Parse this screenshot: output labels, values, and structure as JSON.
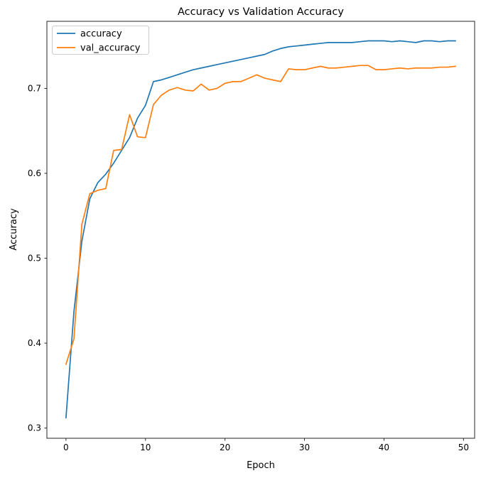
{
  "chart_data": {
    "type": "line",
    "title": "Accuracy vs Validation Accuracy",
    "xlabel": "Epoch",
    "ylabel": "Accuracy",
    "xlim": [
      -2.4,
      51.4
    ],
    "ylim": [
      0.288,
      0.779
    ],
    "x_ticks": [
      0,
      10,
      20,
      30,
      40,
      50
    ],
    "y_ticks": [
      0.3,
      0.4,
      0.5,
      0.6,
      0.7
    ],
    "grid": false,
    "legend_position": "upper-left",
    "x": [
      0,
      1,
      2,
      3,
      4,
      5,
      6,
      7,
      8,
      9,
      10,
      11,
      12,
      13,
      14,
      15,
      16,
      17,
      18,
      19,
      20,
      21,
      22,
      23,
      24,
      25,
      26,
      27,
      28,
      29,
      30,
      31,
      32,
      33,
      34,
      35,
      36,
      37,
      38,
      39,
      40,
      41,
      42,
      43,
      44,
      45,
      46,
      47,
      48,
      49
    ],
    "series": [
      {
        "name": "accuracy",
        "color": "#1f77b4",
        "values": [
          0.312,
          0.437,
          0.52,
          0.57,
          0.589,
          0.599,
          0.612,
          0.627,
          0.642,
          0.665,
          0.68,
          0.708,
          0.71,
          0.713,
          0.716,
          0.719,
          0.722,
          0.724,
          0.726,
          0.728,
          0.73,
          0.732,
          0.734,
          0.736,
          0.738,
          0.74,
          0.744,
          0.747,
          0.749,
          0.75,
          0.751,
          0.752,
          0.753,
          0.754,
          0.754,
          0.754,
          0.754,
          0.755,
          0.756,
          0.756,
          0.756,
          0.755,
          0.756,
          0.755,
          0.754,
          0.756,
          0.756,
          0.755,
          0.756,
          0.756
        ]
      },
      {
        "name": "val_accuracy",
        "color": "#ff7f0e",
        "values": [
          0.375,
          0.405,
          0.54,
          0.576,
          0.58,
          0.582,
          0.627,
          0.628,
          0.669,
          0.643,
          0.642,
          0.681,
          0.692,
          0.698,
          0.701,
          0.698,
          0.697,
          0.705,
          0.698,
          0.7,
          0.706,
          0.708,
          0.708,
          0.712,
          0.716,
          0.712,
          0.71,
          0.708,
          0.723,
          0.722,
          0.722,
          0.724,
          0.726,
          0.724,
          0.724,
          0.725,
          0.726,
          0.727,
          0.727,
          0.722,
          0.722,
          0.723,
          0.724,
          0.723,
          0.724,
          0.724,
          0.724,
          0.725,
          0.725,
          0.726
        ]
      }
    ],
    "styles": {
      "line_width": 1.7,
      "spine_color": "#262626",
      "tick_color": "#262626",
      "legend_border_color": "#cccccc",
      "background_color": "#ffffff"
    }
  }
}
